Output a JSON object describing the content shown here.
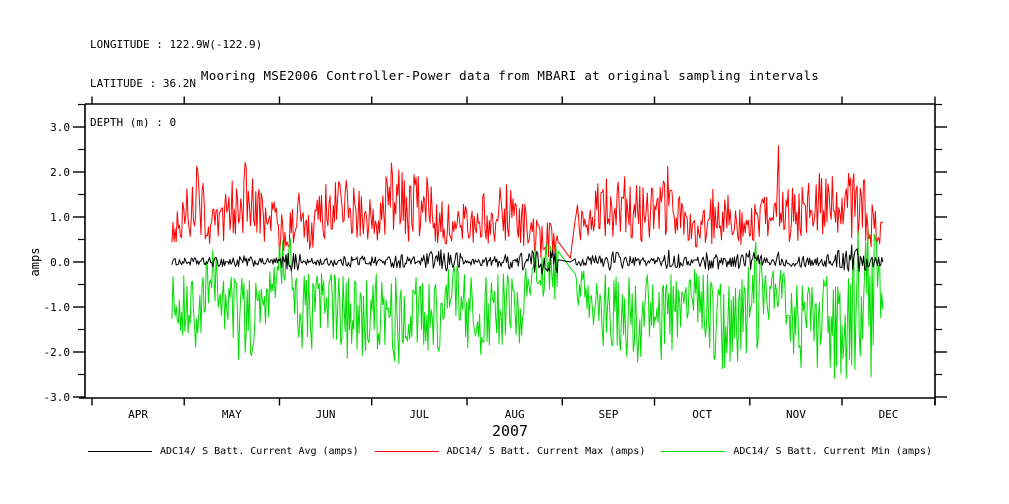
{
  "header": {
    "longitude": "LONGITUDE : 122.9W(-122.9)",
    "latitude": "LATITUDE : 36.2N",
    "depth": "DEPTH (m) : 0"
  },
  "chart_data": {
    "type": "line",
    "title": "Mooring MSE2006 Controller-Power data from MBARI at original sampling intervals",
    "ylabel": "amps",
    "xlabel": "2007",
    "background": "#ffffff",
    "axis_color": "#000000",
    "grid": false,
    "legend_position": "bottom",
    "ylim": [
      -3.02,
      3.51
    ],
    "y_ticks": [
      3,
      2,
      1,
      0,
      -1,
      -2,
      -3
    ],
    "y_minor_step": 0.5,
    "x_tick_days": [
      0,
      30,
      61,
      91,
      122,
      153,
      183,
      214,
      244,
      275
    ],
    "x_tick_month_labels": [
      "APR",
      "MAY",
      "JUN",
      "JUL",
      "AUG",
      "SEP",
      "OCT",
      "NOV",
      "DEC"
    ],
    "data_start_day": 26,
    "data_end_day": 257.5,
    "noise_step_days": 0.35,
    "gap": {
      "from": 151.8,
      "mid": 155.6,
      "to": 157.2
    },
    "series": [
      {
        "name": "ADC14/ S Batt. Current Avg (amps)",
        "color": "#000000",
        "envelope": [
          [
            26,
            -0.07,
            0.08
          ],
          [
            45,
            -0.12,
            0.12
          ],
          [
            49,
            -0.16,
            0.15
          ],
          [
            55,
            -0.07,
            0.08
          ],
          [
            61,
            -0.1,
            0.1
          ],
          [
            66,
            -0.28,
            0.33
          ],
          [
            69,
            -0.08,
            0.08
          ],
          [
            80,
            -0.1,
            0.1
          ],
          [
            86,
            -0.12,
            0.18
          ],
          [
            95,
            -0.08,
            0.1
          ],
          [
            100,
            -0.15,
            0.2
          ],
          [
            106,
            -0.08,
            0.1
          ],
          [
            112,
            -0.22,
            0.28
          ],
          [
            118,
            -0.25,
            0.3
          ],
          [
            122,
            -0.08,
            0.08
          ],
          [
            130,
            -0.1,
            0.12
          ],
          [
            138,
            -0.18,
            0.22
          ],
          [
            144,
            -0.28,
            0.28
          ],
          [
            151.8,
            -0.25,
            0.28
          ],
          [
            155.6,
            -0.03,
            0.03
          ],
          [
            157.2,
            -0.08,
            0.08
          ],
          [
            165,
            -0.12,
            0.18
          ],
          [
            170,
            -0.22,
            0.28
          ],
          [
            176,
            -0.08,
            0.1
          ],
          [
            184,
            -0.1,
            0.12
          ],
          [
            188,
            -0.18,
            0.28
          ],
          [
            194,
            -0.08,
            0.08
          ],
          [
            201,
            -0.2,
            0.25
          ],
          [
            208,
            -0.1,
            0.12
          ],
          [
            214,
            -0.22,
            0.32
          ],
          [
            219,
            -0.08,
            0.1
          ],
          [
            222.9,
            -0.08,
            0.08
          ],
          [
            223.2,
            -0.15,
            1.3
          ],
          [
            223.6,
            -0.08,
            0.08
          ],
          [
            230,
            -0.12,
            0.18
          ],
          [
            237,
            -0.1,
            0.12
          ],
          [
            243,
            -0.18,
            0.28
          ],
          [
            246,
            -0.22,
            0.55
          ],
          [
            249,
            -0.28,
            0.38
          ],
          [
            253,
            -0.15,
            0.28
          ],
          [
            257.5,
            -0.1,
            0.15
          ]
        ]
      },
      {
        "name": "ADC14/ S Batt. Current Max (amps)",
        "color": "#ff0000",
        "envelope": [
          [
            26,
            0.35,
            1.15
          ],
          [
            28,
            0.4,
            1.3
          ],
          [
            30,
            0.4,
            1.5
          ],
          [
            32,
            0.5,
            2.0
          ],
          [
            34,
            0.5,
            2.35
          ],
          [
            36,
            0.45,
            2.0
          ],
          [
            38,
            0.3,
            1.35
          ],
          [
            40,
            0.3,
            1.2
          ],
          [
            43,
            0.35,
            1.5
          ],
          [
            46,
            0.5,
            1.9
          ],
          [
            49,
            0.6,
            2.5
          ],
          [
            51,
            0.5,
            2.1
          ],
          [
            53,
            0.45,
            1.8
          ],
          [
            56,
            0.4,
            1.45
          ],
          [
            59,
            0.45,
            1.7
          ],
          [
            61,
            0.15,
            1.1
          ],
          [
            64,
            0.2,
            1.15
          ],
          [
            66,
            0.4,
            1.6
          ],
          [
            68,
            0.4,
            1.6
          ],
          [
            70,
            0.25,
            1.05
          ],
          [
            72,
            0.3,
            1.2
          ],
          [
            75,
            0.4,
            1.7
          ],
          [
            78,
            0.4,
            1.8
          ],
          [
            81,
            0.5,
            2.1
          ],
          [
            83,
            0.5,
            2.2
          ],
          [
            86,
            0.4,
            1.7
          ],
          [
            89,
            0.35,
            1.4
          ],
          [
            92,
            0.4,
            1.5
          ],
          [
            95,
            0.45,
            1.85
          ],
          [
            98,
            0.55,
            2.3
          ],
          [
            100,
            0.5,
            2.1
          ],
          [
            103,
            0.45,
            1.9
          ],
          [
            106,
            0.4,
            2.0
          ],
          [
            109,
            0.45,
            1.95
          ],
          [
            112,
            0.4,
            1.95
          ],
          [
            115,
            0.35,
            1.5
          ],
          [
            118,
            0.2,
            0.95
          ],
          [
            121,
            0.35,
            1.6
          ],
          [
            124,
            0.4,
            1.7
          ],
          [
            127,
            0.4,
            1.6
          ],
          [
            130,
            0.35,
            1.4
          ],
          [
            133,
            0.4,
            1.7
          ],
          [
            136,
            0.4,
            1.8
          ],
          [
            139,
            0.4,
            1.5
          ],
          [
            142,
            0.3,
            1.2
          ],
          [
            144,
            0.1,
            0.95
          ],
          [
            148,
            0.1,
            0.9
          ],
          [
            151.8,
            0.1,
            0.9
          ],
          [
            155.6,
            0.05,
            0.12
          ],
          [
            157.2,
            0.3,
            1.3
          ],
          [
            160,
            0.3,
            1.2
          ],
          [
            163,
            0.4,
            1.6
          ],
          [
            166,
            0.45,
            1.9
          ],
          [
            169,
            0.5,
            2.1
          ],
          [
            172,
            0.5,
            1.95
          ],
          [
            175,
            0.45,
            1.85
          ],
          [
            178,
            0.4,
            1.7
          ],
          [
            181,
            0.45,
            1.8
          ],
          [
            184,
            0.5,
            2.0
          ],
          [
            187,
            0.5,
            2.25
          ],
          [
            190,
            0.45,
            1.8
          ],
          [
            193,
            0.35,
            1.4
          ],
          [
            196,
            0.25,
            1.05
          ],
          [
            199,
            0.3,
            1.3
          ],
          [
            202,
            0.4,
            1.65
          ],
          [
            206,
            0.45,
            1.85
          ],
          [
            209,
            0.4,
            1.7
          ],
          [
            212,
            0.3,
            1.3
          ],
          [
            214,
            0.2,
            1.2
          ],
          [
            217,
            0.3,
            1.4
          ],
          [
            220,
            0.35,
            1.5
          ],
          [
            222.9,
            0.4,
            1.5
          ],
          [
            223.2,
            0.5,
            3.25
          ],
          [
            223.6,
            0.4,
            1.5
          ],
          [
            226,
            0.4,
            1.65
          ],
          [
            229,
            0.45,
            1.8
          ],
          [
            232,
            0.5,
            1.95
          ],
          [
            235,
            0.5,
            1.9
          ],
          [
            238,
            0.5,
            2.05
          ],
          [
            241,
            0.55,
            2.3
          ],
          [
            244,
            0.45,
            1.9
          ],
          [
            247,
            0.5,
            2.1
          ],
          [
            250,
            0.5,
            2.2
          ],
          [
            252,
            0.4,
            1.7
          ],
          [
            254,
            0.3,
            1.3
          ],
          [
            256,
            0.15,
            1.0
          ],
          [
            257.5,
            0.1,
            0.9
          ]
        ]
      },
      {
        "name": "ADC14/ S Batt. Current Min (amps)",
        "color": "#00dd00",
        "envelope": [
          [
            26,
            -1.5,
            -0.2
          ],
          [
            28,
            -1.55,
            -0.2
          ],
          [
            30,
            -1.65,
            -0.2
          ],
          [
            32,
            -2.0,
            -0.25
          ],
          [
            34,
            -2.4,
            -0.25
          ],
          [
            36,
            -1.9,
            -0.2
          ],
          [
            39,
            -1.2,
            0.45
          ],
          [
            41,
            -1.1,
            0.4
          ],
          [
            43,
            -1.5,
            -0.2
          ],
          [
            46,
            -2.0,
            -0.25
          ],
          [
            49,
            -2.45,
            -0.3
          ],
          [
            51,
            -2.2,
            -0.25
          ],
          [
            53,
            -2.6,
            -0.25
          ],
          [
            56,
            -1.6,
            -0.2
          ],
          [
            59,
            -0.9,
            -0.1
          ],
          [
            61,
            -0.55,
            0.85
          ],
          [
            64,
            -0.5,
            0.85
          ],
          [
            66,
            -1.2,
            -0.15
          ],
          [
            68,
            -1.95,
            -0.25
          ],
          [
            71,
            -2.05,
            -0.25
          ],
          [
            74,
            -1.6,
            -0.2
          ],
          [
            77,
            -1.55,
            -0.2
          ],
          [
            80,
            -1.9,
            -0.25
          ],
          [
            83,
            -2.25,
            -0.3
          ],
          [
            86,
            -2.85,
            -0.3
          ],
          [
            89,
            -2.0,
            -0.25
          ],
          [
            92,
            -1.9,
            -0.25
          ],
          [
            95,
            -2.3,
            -0.3
          ],
          [
            98,
            -2.65,
            -0.3
          ],
          [
            100,
            -2.3,
            -0.3
          ],
          [
            103,
            -1.9,
            -0.25
          ],
          [
            106,
            -1.85,
            -0.25
          ],
          [
            109,
            -2.2,
            -0.3
          ],
          [
            112,
            -2.35,
            -0.3
          ],
          [
            115,
            -1.8,
            -0.2
          ],
          [
            118,
            -1.1,
            0.3
          ],
          [
            121,
            -1.9,
            -0.25
          ],
          [
            124,
            -2.4,
            -0.3
          ],
          [
            126,
            -2.85,
            -0.3
          ],
          [
            128,
            -2.1,
            -0.25
          ],
          [
            130,
            -1.7,
            -0.25
          ],
          [
            133,
            -1.9,
            -0.25
          ],
          [
            136,
            -1.8,
            -0.25
          ],
          [
            139,
            -1.85,
            -0.25
          ],
          [
            142,
            -1.2,
            -0.1
          ],
          [
            144,
            -0.9,
            0.5
          ],
          [
            148,
            -0.85,
            0.5
          ],
          [
            151.8,
            -0.9,
            0.45
          ],
          [
            155.6,
            -0.18,
            -0.08
          ],
          [
            157.2,
            -0.9,
            -0.1
          ],
          [
            160,
            -1.2,
            -0.15
          ],
          [
            163,
            -1.5,
            -0.2
          ],
          [
            166,
            -1.9,
            -0.25
          ],
          [
            169,
            -2.3,
            -0.25
          ],
          [
            172,
            -2.25,
            -0.25
          ],
          [
            175,
            -2.2,
            -0.25
          ],
          [
            178,
            -2.3,
            -0.25
          ],
          [
            181,
            -1.95,
            -0.25
          ],
          [
            184,
            -2.1,
            -0.25
          ],
          [
            187,
            -2.45,
            -0.3
          ],
          [
            190,
            -1.8,
            -0.2
          ],
          [
            193,
            -1.5,
            -0.2
          ],
          [
            196,
            -1.3,
            -0.15
          ],
          [
            199,
            -1.8,
            -0.2
          ],
          [
            202,
            -2.25,
            -0.25
          ],
          [
            206,
            -2.5,
            -0.3
          ],
          [
            209,
            -2.35,
            -0.3
          ],
          [
            212,
            -2.0,
            -0.2
          ],
          [
            214,
            -2.2,
            0.7
          ],
          [
            216,
            -2.0,
            0.6
          ],
          [
            219,
            -1.9,
            -0.2
          ],
          [
            222,
            -1.2,
            -0.15
          ],
          [
            224,
            -1.0,
            -0.15
          ],
          [
            226,
            -1.9,
            -0.25
          ],
          [
            229,
            -2.35,
            -0.3
          ],
          [
            232,
            -2.65,
            -0.3
          ],
          [
            235,
            -2.45,
            -0.3
          ],
          [
            238,
            -2.4,
            -0.3
          ],
          [
            241,
            -2.55,
            -0.3
          ],
          [
            244,
            -2.8,
            -0.3
          ],
          [
            247,
            -2.5,
            -0.25
          ],
          [
            249,
            -2.6,
            0.8
          ],
          [
            251,
            -2.65,
            0.85
          ],
          [
            253,
            -2.6,
            0.85
          ],
          [
            255,
            -2.7,
            0.8
          ],
          [
            257.5,
            -2.6,
            0.75
          ]
        ]
      }
    ]
  }
}
